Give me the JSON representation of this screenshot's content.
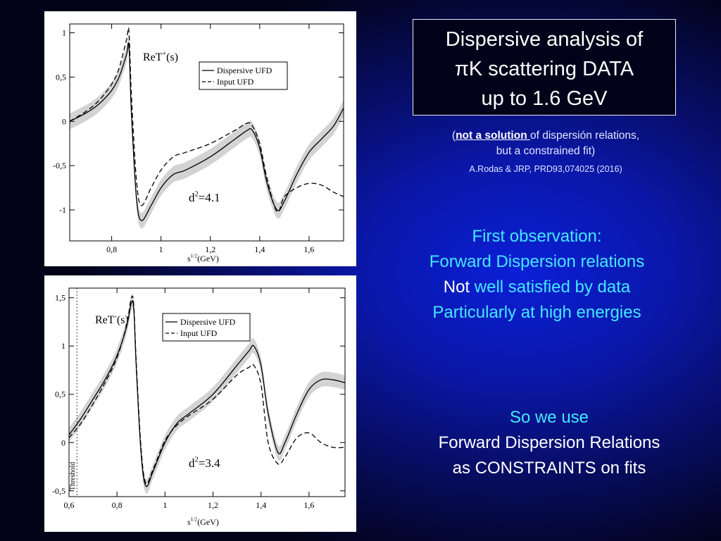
{
  "slide": {
    "title_lines": [
      "Dispersive analysis of",
      "πK scattering DATA",
      "up to 1.6 GeV"
    ],
    "note": {
      "open_paren": "(",
      "emphasis": "not a solution ",
      "rest_line1": "of dispersión relations,",
      "line2": "but a constrained fit)",
      "reference": "A.Rodas & JRP, PRD93,074025 (2016)"
    },
    "observation": {
      "line1": "First observation:",
      "line2": "Forward Dispersion relations",
      "line3_white": "Not",
      "line3_cyan": " well satisfied by data",
      "line4": "Particularly at high energies"
    },
    "conclusion": {
      "line1": "So we use",
      "line2": "Forward Dispersion Relations",
      "line3": "as CONSTRAINTS on fits"
    }
  },
  "colors": {
    "cyan_text": "#44e8ff",
    "band": "#d3d3d3",
    "curve": "#000000",
    "background_center": "#0b1fd6",
    "background_edge": "#020316"
  },
  "chart_data": [
    {
      "type": "line",
      "label": "ReT",
      "label_sup": "+",
      "label_tail": "(s)",
      "xlabel": "s",
      "xlabel_sup": "1/2",
      "xlabel_tail": "(GeV)",
      "xlim": [
        0.63,
        1.74
      ],
      "ylim": [
        -1.35,
        1.1
      ],
      "xticks": [
        0.8,
        1.0,
        1.2,
        1.4,
        1.6
      ],
      "xticklabels": [
        "0,8",
        "1",
        "1,2",
        "1,4",
        "1,6"
      ],
      "yticks": [
        -1,
        -0.5,
        0,
        0.5,
        1
      ],
      "yticklabels": [
        "-1",
        "-0,5",
        "0",
        "0,5",
        "1"
      ],
      "legend": {
        "position": "top-right",
        "entries": [
          "Dispersive UFD",
          "Input UFD"
        ]
      },
      "annotation": {
        "base": "d",
        "sup": "2",
        "tail": "=4.1"
      },
      "threshold": null,
      "series": [
        {
          "name": "Dispersive UFD",
          "style": "solid",
          "x": [
            0.63,
            0.7,
            0.75,
            0.8,
            0.83,
            0.86,
            0.87,
            0.88,
            0.9,
            0.92,
            0.96,
            1.0,
            1.05,
            1.1,
            1.2,
            1.3,
            1.35,
            1.37,
            1.4,
            1.43,
            1.47,
            1.5,
            1.55,
            1.6,
            1.65,
            1.7,
            1.74
          ],
          "y": [
            0.0,
            0.1,
            0.2,
            0.35,
            0.5,
            0.75,
            0.85,
            0.1,
            -0.85,
            -1.12,
            -0.95,
            -0.75,
            -0.6,
            -0.55,
            -0.4,
            -0.2,
            -0.1,
            -0.1,
            -0.3,
            -0.7,
            -1.0,
            -0.9,
            -0.6,
            -0.35,
            -0.2,
            -0.05,
            0.15
          ]
        },
        {
          "name": "Input UFD",
          "style": "dashed",
          "x": [
            0.63,
            0.7,
            0.75,
            0.8,
            0.83,
            0.86,
            0.87,
            0.88,
            0.9,
            0.92,
            0.96,
            1.0,
            1.05,
            1.1,
            1.2,
            1.3,
            1.35,
            1.37,
            1.4,
            1.43,
            1.47,
            1.5,
            1.55,
            1.6,
            1.65,
            1.7,
            1.74
          ],
          "y": [
            0.0,
            0.12,
            0.24,
            0.42,
            0.6,
            0.92,
            1.02,
            0.3,
            -0.65,
            -0.95,
            -0.75,
            -0.55,
            -0.4,
            -0.35,
            -0.25,
            -0.1,
            -0.02,
            -0.05,
            -0.25,
            -0.65,
            -1.02,
            -0.85,
            -0.75,
            -0.7,
            -0.72,
            -0.8,
            -0.85
          ]
        }
      ]
    },
    {
      "type": "line",
      "label": "ReT",
      "label_sup": "-",
      "label_tail": "(s)",
      "xlabel": "s",
      "xlabel_sup": "1/2",
      "xlabel_tail": "(GeV)",
      "xlim": [
        0.6,
        1.75
      ],
      "ylim": [
        -0.56,
        1.6
      ],
      "xticks": [
        0.6,
        0.8,
        1.0,
        1.2,
        1.4,
        1.6
      ],
      "xticklabels": [
        "0,6",
        "0,8",
        "1",
        "1,2",
        "1,4",
        "1,6"
      ],
      "yticks": [
        -0.5,
        0,
        0.5,
        1,
        1.5
      ],
      "yticklabels": [
        "-0,5",
        "0",
        "0,5",
        "1",
        "1,5"
      ],
      "legend": {
        "position": "top-right",
        "entries": [
          "Dispersive UFD",
          "Input UFD"
        ]
      },
      "annotation": {
        "base": "d",
        "sup": "2",
        "tail": "=3.4"
      },
      "threshold": {
        "x": 0.633,
        "label": "Threshold"
      },
      "series": [
        {
          "name": "Dispersive UFD",
          "style": "solid",
          "x": [
            0.6,
            0.65,
            0.7,
            0.75,
            0.8,
            0.84,
            0.86,
            0.87,
            0.88,
            0.9,
            0.92,
            0.95,
            1.0,
            1.05,
            1.1,
            1.2,
            1.3,
            1.35,
            1.37,
            1.4,
            1.43,
            1.47,
            1.5,
            1.55,
            1.6,
            1.65,
            1.7,
            1.75
          ],
          "y": [
            0.08,
            0.25,
            0.45,
            0.65,
            0.9,
            1.2,
            1.45,
            1.38,
            0.8,
            -0.1,
            -0.45,
            -0.3,
            0.0,
            0.2,
            0.3,
            0.5,
            0.8,
            0.95,
            1.0,
            0.8,
            0.3,
            -0.1,
            0.0,
            0.3,
            0.55,
            0.65,
            0.65,
            0.62
          ]
        },
        {
          "name": "Input UFD",
          "style": "dashed",
          "x": [
            0.6,
            0.65,
            0.7,
            0.75,
            0.8,
            0.84,
            0.86,
            0.87,
            0.88,
            0.9,
            0.92,
            0.95,
            1.0,
            1.05,
            1.1,
            1.2,
            1.3,
            1.35,
            1.37,
            1.4,
            1.43,
            1.47,
            1.5,
            1.55,
            1.6,
            1.65,
            1.7,
            1.75
          ],
          "y": [
            0.05,
            0.2,
            0.4,
            0.62,
            0.88,
            1.22,
            1.5,
            1.42,
            0.85,
            -0.05,
            -0.42,
            -0.28,
            0.02,
            0.18,
            0.28,
            0.45,
            0.7,
            0.78,
            0.8,
            0.6,
            0.0,
            -0.22,
            -0.15,
            0.05,
            0.1,
            0.0,
            -0.05,
            -0.05
          ]
        }
      ]
    }
  ]
}
